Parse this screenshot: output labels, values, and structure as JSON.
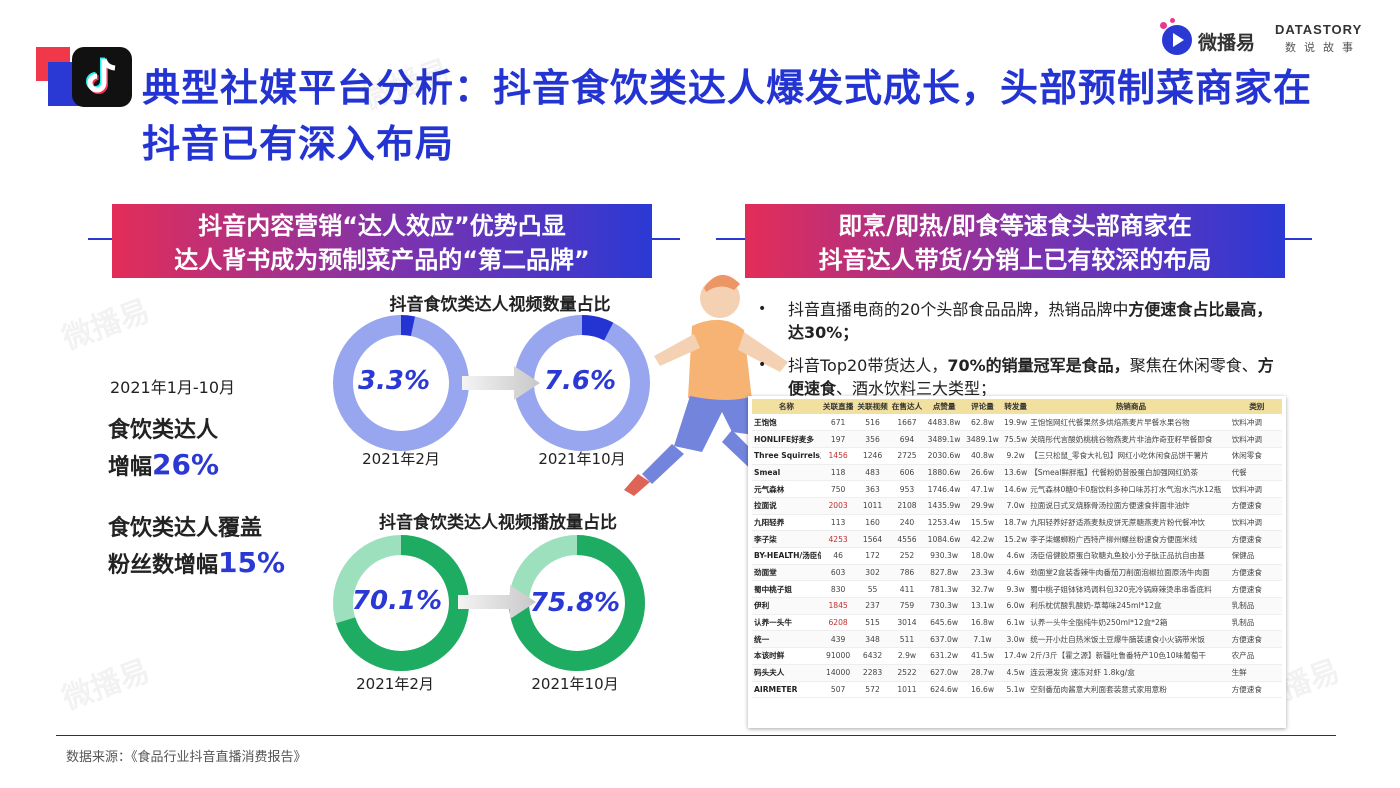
{
  "title": "典型社媒平台分析：抖音食饮类达人爆发式成长，头部预制菜商家在抖音已有深入布局",
  "logos": {
    "weiboyi": "微播易",
    "datastory_en": "DATASTORY",
    "datastory_cn": "数说故事"
  },
  "left_banner": {
    "line1": "抖音内容营销“达人效应”优势凸显",
    "line2": "达人背书成为预制菜产品的“第二品牌”"
  },
  "right_banner": {
    "line1": "即烹/即热/即食等速食头部商家在",
    "line2": "抖音达人带货/分销上已有较深的布局"
  },
  "date_range": "2021年1月-10月",
  "stats": [
    {
      "label_line1": "食饮类达人",
      "label_line2_prefix": "增幅",
      "value": "26%"
    },
    {
      "label_line1": "食饮类达人覆盖",
      "label_line2_prefix": "粉丝数增幅",
      "value": "15%"
    }
  ],
  "chart_data": [
    {
      "type": "pie",
      "title": "抖音食饮类达人视频数量占比",
      "categories": [
        "2021年2月",
        "2021年10月"
      ],
      "values": [
        3.3,
        7.6
      ],
      "value_labels": [
        "3.3%",
        "7.6%"
      ],
      "colors": {
        "highlight": "#2434d2",
        "rest": "#97a6ee"
      }
    },
    {
      "type": "pie",
      "title": "抖音食饮类达人视频播放量占比",
      "categories": [
        "2021年2月",
        "2021年10月"
      ],
      "values": [
        70.1,
        75.8
      ],
      "value_labels": [
        "70.1%",
        "75.8%"
      ],
      "colors": {
        "highlight": "#1eab62",
        "rest": "#9de0bd"
      }
    }
  ],
  "bullets": [
    {
      "pre": "抖音直播电商的20个头部食品品牌，热销品牌中",
      "bold": "方便速食占比最高，达30%；",
      "post": ""
    },
    {
      "pre": "抖音Top20带货达人，",
      "bold": "70%的销量冠军是食品，",
      "post": "聚焦在休闲零食、",
      "bold2": "方便速食",
      "post2": "、酒水饮料三大类型；"
    }
  ],
  "table": {
    "headers": [
      "名称",
      "关联直播",
      "关联视频",
      "在售达人",
      "点赞量",
      "评论量",
      "转发量",
      "热销商品",
      "类别"
    ],
    "rows": [
      [
        "王饱饱",
        "671",
        "516",
        "1667",
        "4483.8w",
        "62.8w",
        "19.9w",
        "王饱饱网红代餐果然多烘焙燕麦片早餐水果谷物",
        "饮料冲调"
      ],
      [
        "HONLIFE好麦多",
        "197",
        "356",
        "694",
        "3489.1w",
        "3489.1w",
        "75.5w",
        "关晓彤代言酸奶桃桃谷物燕麦片非油炸奇亚籽早餐即食",
        "饮料冲调"
      ],
      [
        "Three Squirrels三只松鼠",
        "1456",
        "1246",
        "2725",
        "2030.6w",
        "40.8w",
        "9.2w",
        "【三只松鼠_零食大礼包】网红小吃休闲食品饼干薯片",
        "休闲零食"
      ],
      [
        "Smeal",
        "118",
        "483",
        "606",
        "1880.6w",
        "26.6w",
        "13.6w",
        "【Smeal鲜胖瓶】代餐粉奶昔股蛋白加强网红奶茶",
        "代餐"
      ],
      [
        "元气森林",
        "750",
        "363",
        "953",
        "1746.4w",
        "47.1w",
        "14.6w",
        "元气森林0糖0卡0脂饮料多种口味苏打水气泡水汽水12瓶",
        "饮料冲调"
      ],
      [
        "拉面说",
        "2003",
        "1011",
        "2108",
        "1435.9w",
        "29.9w",
        "7.0w",
        "拉面说日式叉烧豚骨汤拉面方便速食拌面非油炸",
        "方便速食"
      ],
      [
        "九阳轻养",
        "113",
        "160",
        "240",
        "1253.4w",
        "15.5w",
        "18.7w",
        "九阳轻养好舒适燕麦麸皮饼无蔗糖燕麦片粉代餐冲饮",
        "饮料冲调"
      ],
      [
        "李子柒",
        "4253",
        "1564",
        "4556",
        "1084.6w",
        "42.2w",
        "15.2w",
        "李子柒螺蛳粉广西特产柳州螺丝粉速食方便面米线",
        "方便速食"
      ],
      [
        "BY-HEALTH/汤臣倍健",
        "46",
        "172",
        "252",
        "930.3w",
        "18.0w",
        "4.6w",
        "汤臣倍健胶原蛋白软糖丸鱼胶小分子肽正品抗自由基",
        "保健品"
      ],
      [
        "劲面堂",
        "603",
        "302",
        "786",
        "827.8w",
        "23.3w",
        "4.6w",
        "劲面堂2盒装香辣牛肉番茄刀削面泡椒拉面原汤牛肉面",
        "方便速食"
      ],
      [
        "蜀中桃子姐",
        "830",
        "55",
        "411",
        "781.3w",
        "32.7w",
        "9.3w",
        "蜀中桃子姐钵钵鸡调料包320克冷锅麻辣烫串串香底料",
        "方便速食"
      ],
      [
        "伊利",
        "1845",
        "237",
        "759",
        "730.3w",
        "13.1w",
        "6.0w",
        "利乐枕优酸乳酸奶-草莓味245ml*12盒",
        "乳制品"
      ],
      [
        "认养一头牛",
        "6208",
        "515",
        "3014",
        "645.6w",
        "16.8w",
        "6.1w",
        "认养一头牛全脂纯牛奶250ml*12盒*2箱",
        "乳制品"
      ],
      [
        "统一",
        "439",
        "348",
        "511",
        "637.0w",
        "7.1w",
        "3.0w",
        "统一开小灶自热米饭土豆爆牛腩装速食小火锅带米饭",
        "方便速食"
      ],
      [
        "本该时鲜",
        "91000",
        "6432",
        "2.9w",
        "631.2w",
        "41.5w",
        "17.4w",
        "2斤/3斤【霍之源】新疆吐鲁番特产10色10味葡萄干",
        "农产品"
      ],
      [
        "码头夫人",
        "14000",
        "2283",
        "2522",
        "627.0w",
        "28.7w",
        "4.5w",
        "连云港发货 速冻对虾 1.8kg/盒",
        "生鲜"
      ],
      [
        "AIRMETER",
        "507",
        "572",
        "1011",
        "624.6w",
        "16.6w",
        "5.1w",
        "空刻番茄肉酱意大利面套装意式家用意粉",
        "方便速食"
      ]
    ],
    "highlight_color": "#c03030"
  },
  "source": "数据来源：《食品行业抖音直播消费报告》",
  "watermark": "微播易"
}
